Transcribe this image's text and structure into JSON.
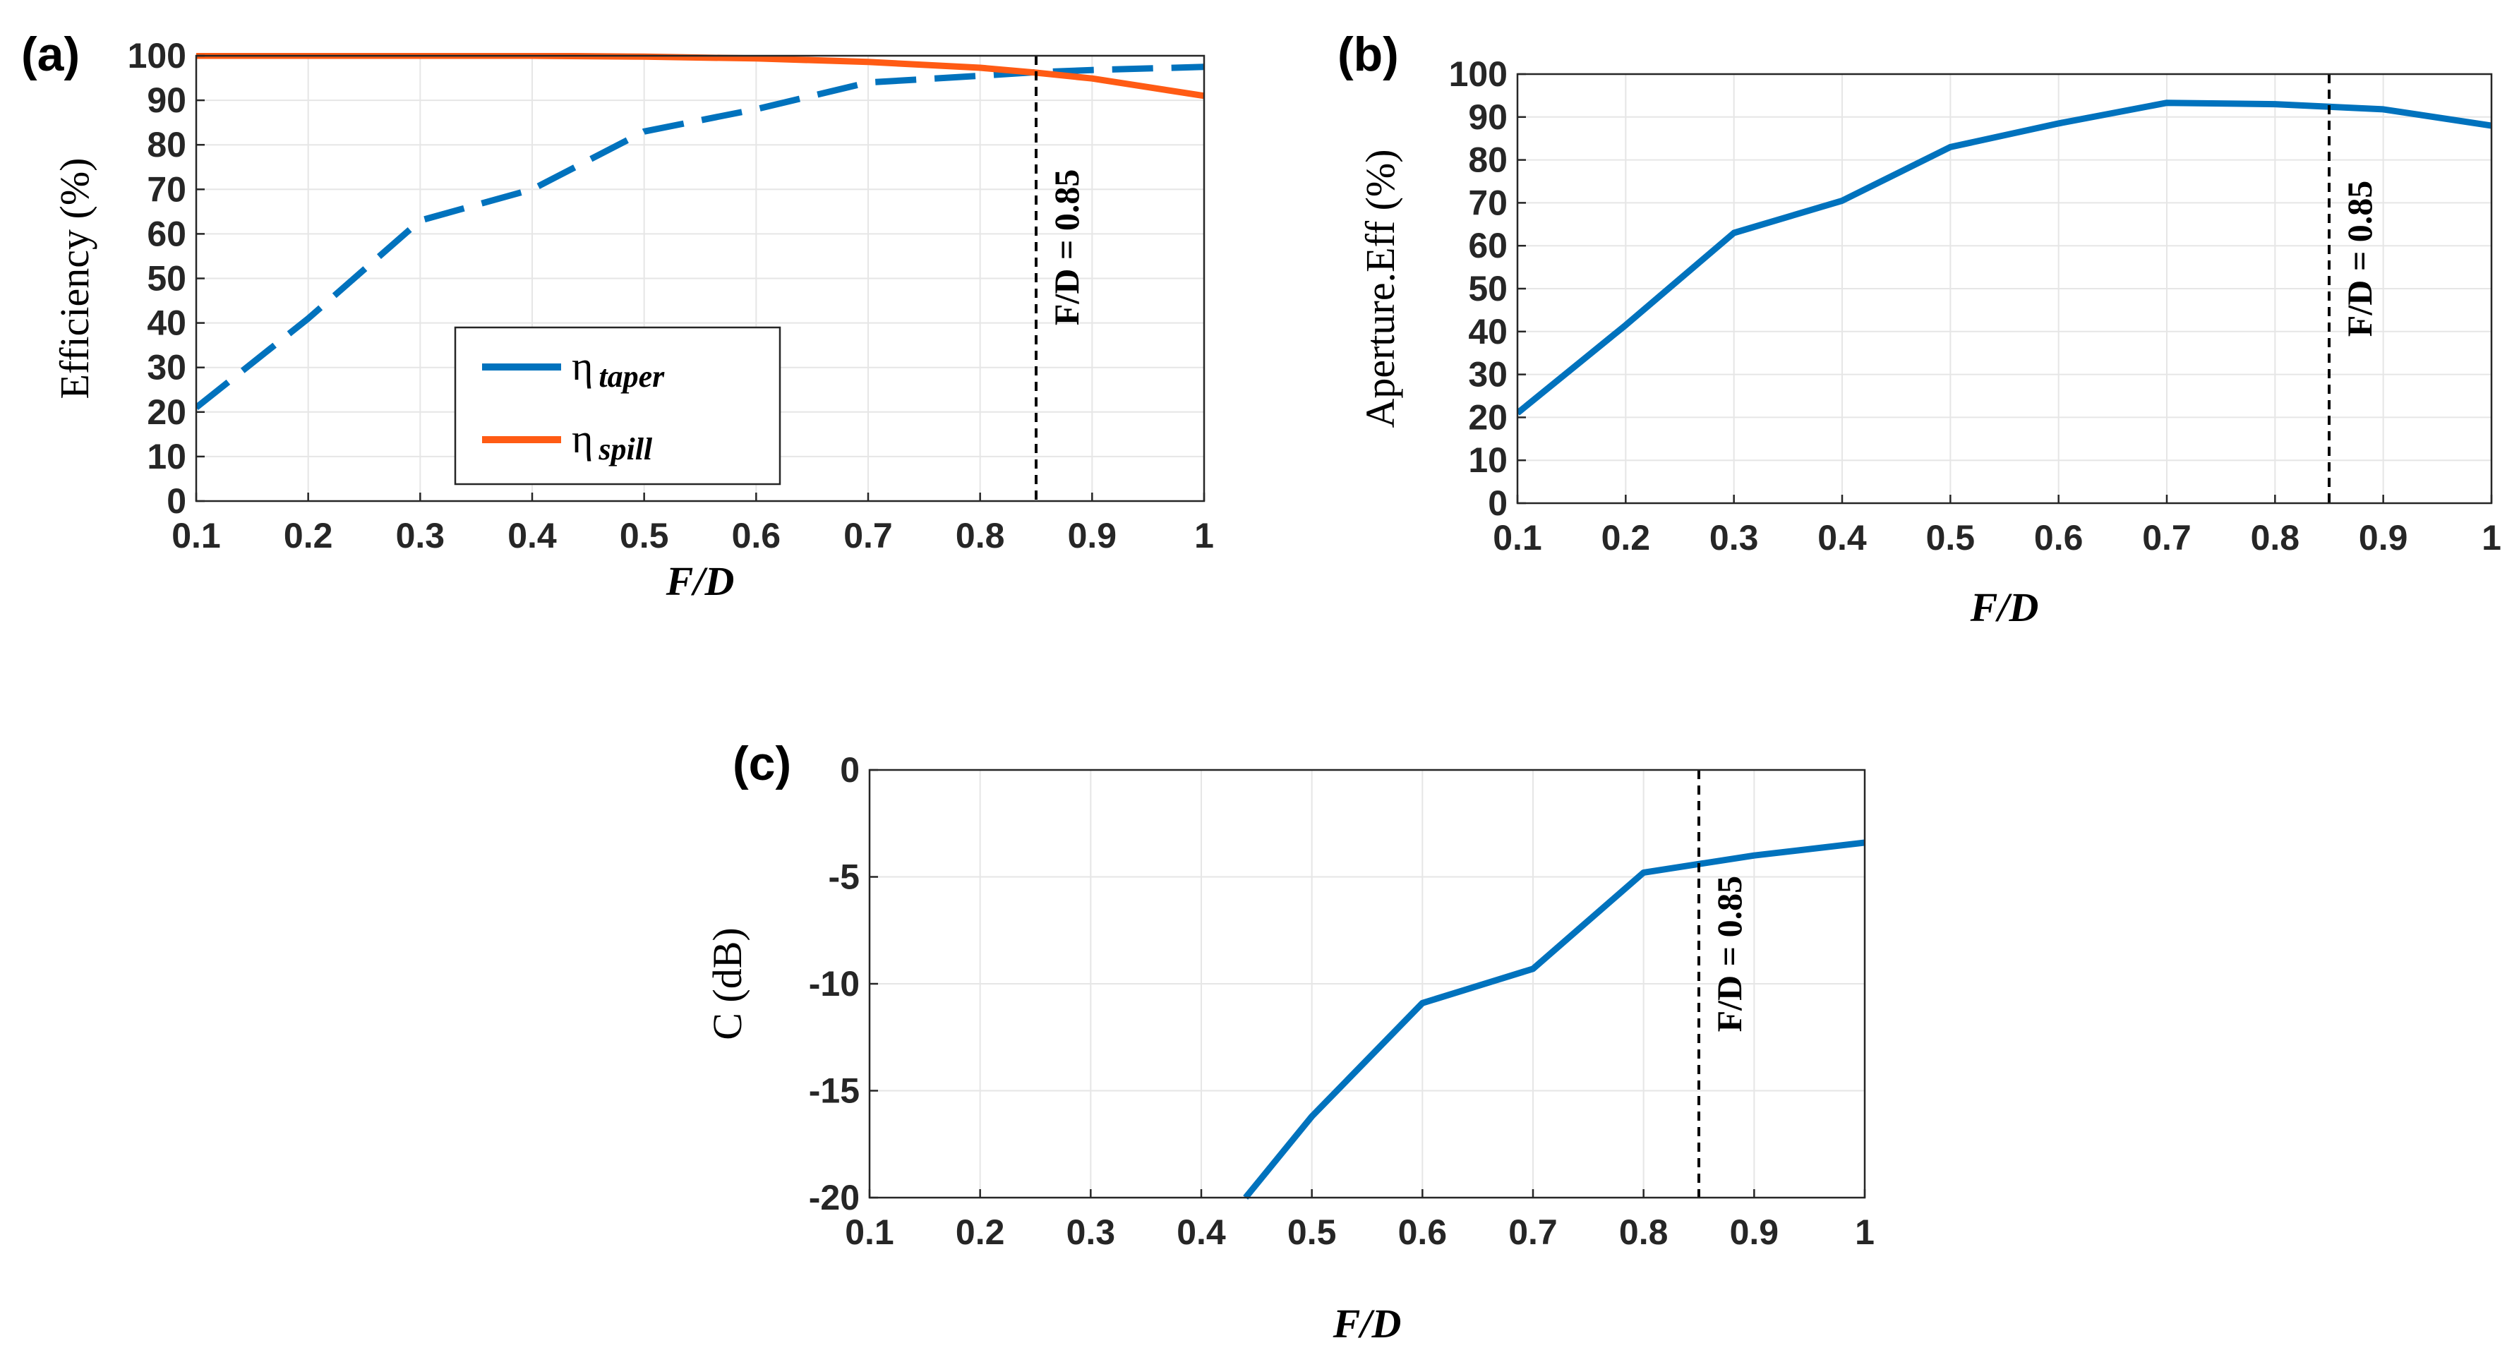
{
  "panel_labels": [
    "(a)",
    "(b)",
    "(c)"
  ],
  "chart_data": [
    {
      "id": "a",
      "type": "line",
      "title": "",
      "xlabel": "F/D",
      "ylabel": "Efficiency (%)",
      "xlim": [
        0.1,
        1
      ],
      "ylim": [
        0,
        100
      ],
      "xticks": [
        0.1,
        0.2,
        0.3,
        0.4,
        0.5,
        0.6,
        0.7,
        0.8,
        0.9,
        1
      ],
      "xtick_labels": [
        "0.1",
        "0.2",
        "0.3",
        "0.4",
        "0.5",
        "0.6",
        "0.7",
        "0.8",
        "0.9",
        "1"
      ],
      "yticks": [
        0,
        10,
        20,
        30,
        40,
        50,
        60,
        70,
        80,
        90,
        100
      ],
      "ytick_labels": [
        "0",
        "10",
        "20",
        "30",
        "40",
        "50",
        "60",
        "70",
        "80",
        "90",
        "100"
      ],
      "grid": true,
      "legend_position": "lower-center",
      "series": [
        {
          "name": "η",
          "subscript": "taper",
          "color": "#0072BD",
          "style": "dashed",
          "x": [
            0.1,
            0.2,
            0.3,
            0.4,
            0.5,
            0.6,
            0.7,
            0.8,
            0.85,
            0.9,
            1
          ],
          "values": [
            21,
            41,
            63,
            70,
            83,
            88,
            94,
            95.5,
            96.3,
            96.8,
            97.5
          ]
        },
        {
          "name": "η",
          "subscript": "spill",
          "color": "#FF5B14",
          "style": "solid",
          "x": [
            0.1,
            0.2,
            0.3,
            0.4,
            0.5,
            0.6,
            0.7,
            0.8,
            0.85,
            0.9,
            1
          ],
          "values": [
            100,
            100,
            100,
            100,
            99.8,
            99.4,
            98.6,
            97.3,
            96.2,
            94.9,
            91
          ]
        }
      ],
      "annotations": [
        {
          "x": 0.85,
          "text": "F/D =   0.85"
        }
      ]
    },
    {
      "id": "b",
      "type": "line",
      "title": "",
      "xlabel": "F/D",
      "ylabel": "Aperture.Eff (%)",
      "xlim": [
        0.1,
        1
      ],
      "ylim": [
        0,
        100
      ],
      "xticks": [
        0.1,
        0.2,
        0.3,
        0.4,
        0.5,
        0.6,
        0.7,
        0.8,
        0.9,
        1
      ],
      "xtick_labels": [
        "0.1",
        "0.2",
        "0.3",
        "0.4",
        "0.5",
        "0.6",
        "0.7",
        "0.8",
        "0.9",
        "1"
      ],
      "yticks": [
        0,
        10,
        20,
        30,
        40,
        50,
        60,
        70,
        80,
        90,
        100
      ],
      "ytick_labels": [
        "0",
        "10",
        "20",
        "30",
        "40",
        "50",
        "60",
        "70",
        "80",
        "90",
        "100"
      ],
      "grid": true,
      "series": [
        {
          "name": "Aperture efficiency",
          "color": "#0072BD",
          "style": "solid",
          "x": [
            0.1,
            0.2,
            0.3,
            0.4,
            0.5,
            0.6,
            0.7,
            0.8,
            0.9,
            1
          ],
          "values": [
            21,
            41.5,
            63,
            70.5,
            83,
            88.5,
            93.3,
            93,
            91.8,
            88
          ]
        }
      ],
      "annotations": [
        {
          "x": 0.85,
          "text": "F/D =   0.85"
        }
      ]
    },
    {
      "id": "c",
      "type": "line",
      "title": "",
      "xlabel": "F/D",
      "ylabel": "C (dB)",
      "xlim": [
        0.1,
        1
      ],
      "ylim": [
        -20,
        0
      ],
      "xticks": [
        0.1,
        0.2,
        0.3,
        0.4,
        0.5,
        0.6,
        0.7,
        0.8,
        0.9,
        1
      ],
      "xtick_labels": [
        "0.1",
        "0.2",
        "0.3",
        "0.4",
        "0.5",
        "0.6",
        "0.7",
        "0.8",
        "0.9",
        "1"
      ],
      "yticks": [
        0,
        -5,
        -10,
        -15,
        -20
      ],
      "ytick_labels": [
        "0",
        "-5",
        "-10",
        "-15",
        "-20"
      ],
      "grid": true,
      "series": [
        {
          "name": "C",
          "color": "#0072BD",
          "style": "solid",
          "x": [
            0.44,
            0.5,
            0.6,
            0.7,
            0.8,
            0.9,
            1
          ],
          "values": [
            -20,
            -16.2,
            -10.9,
            -9.3,
            -4.8,
            -4.0,
            -3.4
          ]
        }
      ],
      "annotations": [
        {
          "x": 0.85,
          "text": "F/D =   0.85"
        }
      ]
    }
  ]
}
